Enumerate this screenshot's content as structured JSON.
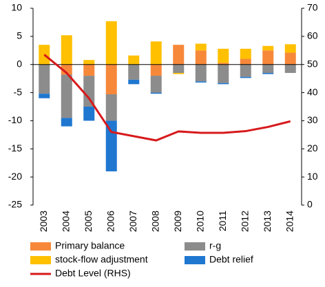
{
  "chart_data": {
    "type": "bar",
    "categories": [
      "2003",
      "2004",
      "2005",
      "2006",
      "2007",
      "2008",
      "2009",
      "2010",
      "2011",
      "2012",
      "2013",
      "2014"
    ],
    "series": [
      {
        "name": "Primary balance",
        "color": "#f7883a",
        "values": [
          0,
          -1.8,
          -2,
          -5.3,
          0,
          -2,
          3.5,
          2.5,
          0.3,
          1.0,
          2.5,
          2.1
        ]
      },
      {
        "name": "r-g",
        "color": "#8c8c8c",
        "values": [
          -5.2,
          -7.7,
          -5.5,
          -4.7,
          -2.7,
          -3,
          -1.5,
          -3,
          -3.3,
          -2.2,
          -1.5,
          -1.5
        ]
      },
      {
        "name": "stock-flow adjustment",
        "color": "#ffc000",
        "values": [
          3.5,
          5.2,
          0.8,
          7.7,
          1.6,
          4.1,
          -0.2,
          1.2,
          2.5,
          1.8,
          0.8,
          1.5
        ]
      },
      {
        "name": "Debt relief",
        "color": "#1f77d0",
        "values": [
          -0.8,
          -1.5,
          -2.5,
          -9,
          -0.8,
          -0.2,
          0,
          -0.2,
          -0.2,
          -0.2,
          -0.2,
          0
        ]
      },
      {
        "name": "Debt Level (RHS)",
        "color": "#d7191c",
        "type": "line",
        "axis": "y2",
        "values": [
          53.5,
          47,
          38,
          26,
          24.5,
          23,
          26.2,
          25.7,
          25.7,
          26.3,
          27.8,
          29.8
        ]
      }
    ],
    "ylim": [
      -25,
      10
    ],
    "yticks": [
      10,
      5,
      0,
      -5,
      -10,
      -15,
      -20,
      -25
    ],
    "y2lim": [
      0,
      70
    ],
    "y2ticks": [
      70,
      60,
      50,
      40,
      30,
      20,
      10,
      0
    ]
  }
}
